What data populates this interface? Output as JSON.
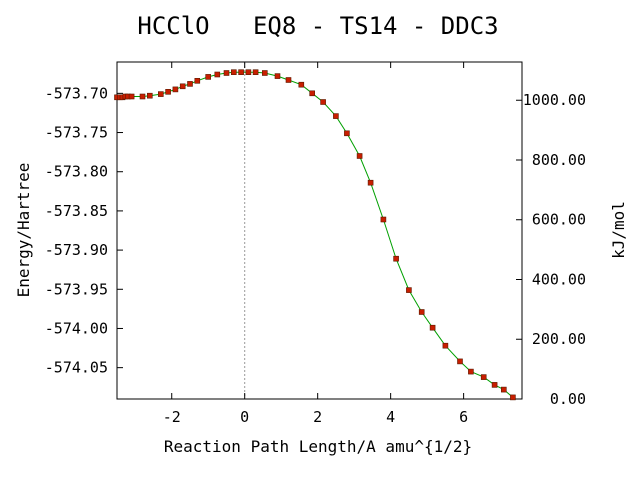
{
  "chart_data": {
    "type": "line",
    "title": "HCClO   EQ8 - TS14 - DDC3",
    "xlabel": "Reaction Path Length/A amu^{1/2}",
    "ylabel": "Energy/Hartree",
    "y2label": "kJ/mol",
    "xlim": [
      -3.5,
      7.6
    ],
    "ylim": [
      -574.09,
      -573.66
    ],
    "y2lim": [
      0,
      1128
    ],
    "grid": false,
    "legend": "none",
    "x_ticks": [
      "-2",
      "0",
      "2",
      "4",
      "6"
    ],
    "x_tick_values": [
      -2,
      0,
      2,
      4,
      6
    ],
    "y_ticks": [
      "-573.70",
      "-573.75",
      "-573.80",
      "-573.85",
      "-573.90",
      "-573.95",
      "-574.00",
      "-574.05"
    ],
    "y_tick_values": [
      -573.7,
      -573.75,
      -573.8,
      -573.85,
      -573.9,
      -573.95,
      -574.0,
      -574.05
    ],
    "y2_ticks": [
      "1000.00",
      "800.00",
      "600.00",
      "400.00",
      "200.00",
      "0.00"
    ],
    "y2_tick_values": [
      1000,
      800,
      600,
      400,
      200,
      0
    ],
    "ts_marker_x": 0,
    "colors": {
      "line": "#00a000",
      "marker": "#c81e00",
      "marker_edge": "#5a1a00",
      "ts_line": "#999999"
    },
    "series": [
      {
        "x": [
          -3.5,
          -3.42,
          -3.35,
          -3.27,
          -3.2,
          -3.1,
          -2.8,
          -2.6,
          -2.3,
          -2.1,
          -1.9,
          -1.7,
          -1.5,
          -1.3,
          -1.0,
          -0.75,
          -0.5,
          -0.3,
          -0.1,
          0.1,
          0.3,
          0.55,
          0.9,
          1.2,
          1.55,
          1.85,
          2.15,
          2.5,
          2.8,
          3.15,
          3.45,
          3.8,
          4.15,
          4.5,
          4.85,
          5.15,
          5.5,
          5.9,
          6.2,
          6.55,
          6.85,
          7.1,
          7.35
        ],
        "y": [
          -573.705,
          -573.705,
          -573.705,
          -573.704,
          -573.704,
          -573.704,
          -573.704,
          -573.703,
          -573.701,
          -573.698,
          -573.695,
          -573.691,
          -573.688,
          -573.684,
          -573.679,
          -573.676,
          -573.674,
          -573.673,
          -573.673,
          -573.673,
          -573.673,
          -573.674,
          -573.678,
          -573.683,
          -573.689,
          -573.7,
          -573.711,
          -573.729,
          -573.751,
          -573.78,
          -573.814,
          -573.861,
          -573.911,
          -573.951,
          -573.979,
          -573.999,
          -574.022,
          -574.042,
          -574.055,
          -574.062,
          -574.072,
          -574.078,
          -574.088
        ]
      }
    ]
  }
}
